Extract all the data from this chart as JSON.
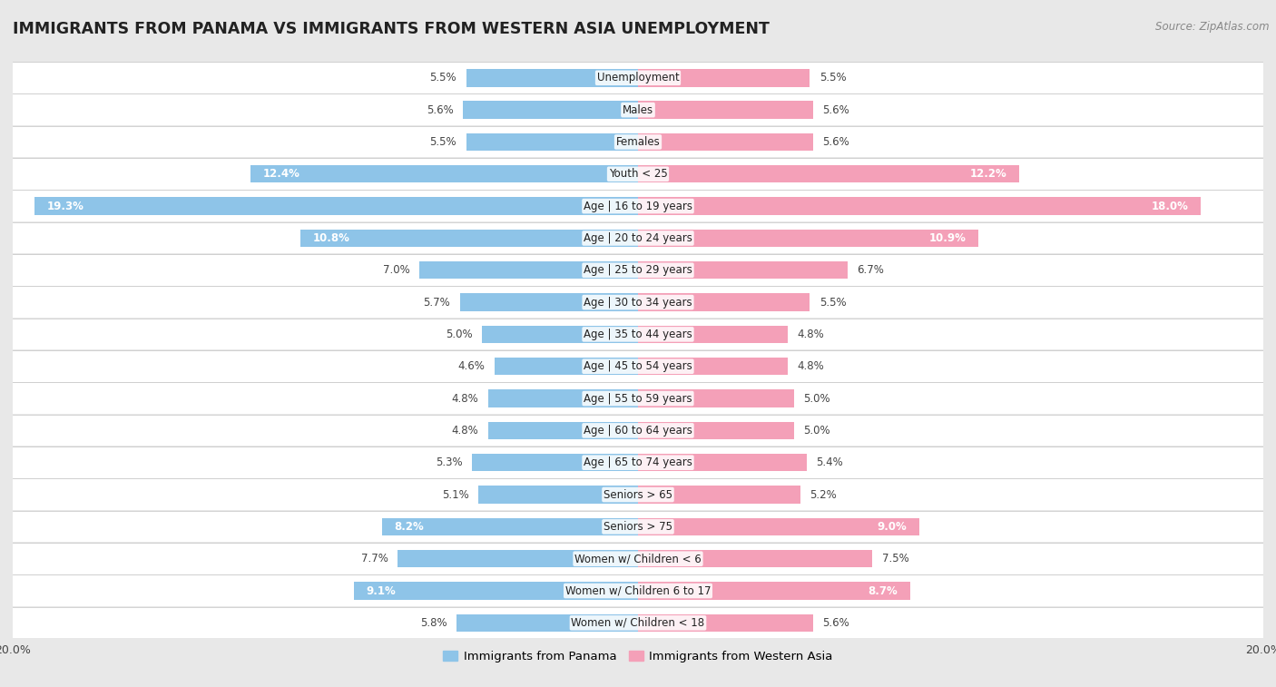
{
  "title": "IMMIGRANTS FROM PANAMA VS IMMIGRANTS FROM WESTERN ASIA UNEMPLOYMENT",
  "source": "Source: ZipAtlas.com",
  "categories": [
    "Unemployment",
    "Males",
    "Females",
    "Youth < 25",
    "Age | 16 to 19 years",
    "Age | 20 to 24 years",
    "Age | 25 to 29 years",
    "Age | 30 to 34 years",
    "Age | 35 to 44 years",
    "Age | 45 to 54 years",
    "Age | 55 to 59 years",
    "Age | 60 to 64 years",
    "Age | 65 to 74 years",
    "Seniors > 65",
    "Seniors > 75",
    "Women w/ Children < 6",
    "Women w/ Children 6 to 17",
    "Women w/ Children < 18"
  ],
  "panama_values": [
    5.5,
    5.6,
    5.5,
    12.4,
    19.3,
    10.8,
    7.0,
    5.7,
    5.0,
    4.6,
    4.8,
    4.8,
    5.3,
    5.1,
    8.2,
    7.7,
    9.1,
    5.8
  ],
  "western_asia_values": [
    5.5,
    5.6,
    5.6,
    12.2,
    18.0,
    10.9,
    6.7,
    5.5,
    4.8,
    4.8,
    5.0,
    5.0,
    5.4,
    5.2,
    9.0,
    7.5,
    8.7,
    5.6
  ],
  "panama_color": "#8ec4e8",
  "western_asia_color": "#f4a0b8",
  "xlim": 20.0,
  "row_bg_color": "#ffffff",
  "outer_bg_color": "#e8e8e8",
  "bar_height": 0.55,
  "title_fontsize": 12.5,
  "label_fontsize": 8.5,
  "tick_fontsize": 9,
  "legend_fontsize": 9.5,
  "value_inside_threshold": 8.0
}
